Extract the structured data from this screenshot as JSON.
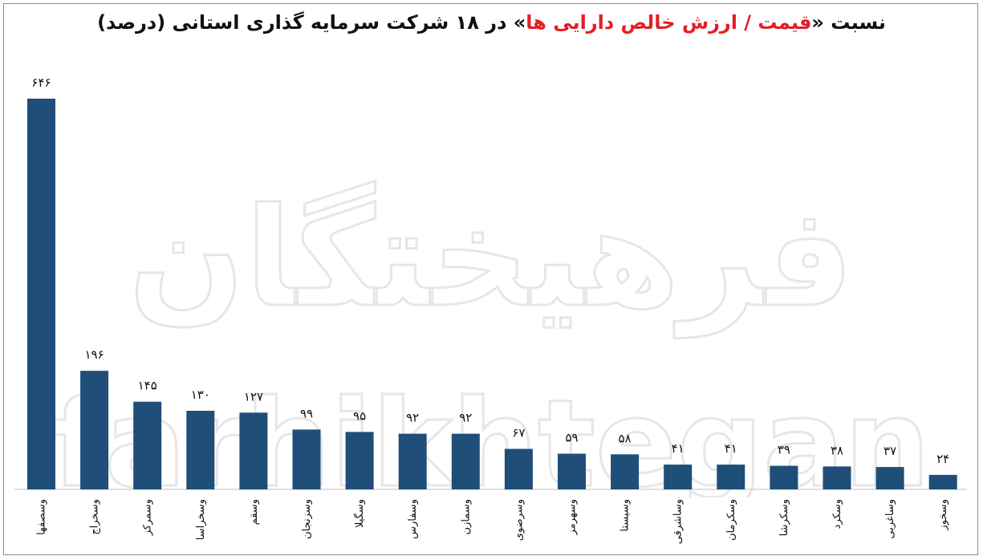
{
  "title": {
    "prefix": "نسبت «",
    "highlight": "قیمت / ارزش خالص دارایی ها",
    "suffix": "» در ۱۸ شرکت سرمایه گذاری استانی (درصد)"
  },
  "watermark": {
    "fa": "فرهیختگان",
    "en": "farhikhtegan"
  },
  "colors": {
    "bar": "#1f4e79",
    "highlight": "#e41e26"
  },
  "chart_data": {
    "type": "bar",
    "title": "نسبت «قیمت / ارزش خالص دارایی ها» در ۱۸ شرکت سرمایه گذاری استانی (درصد)",
    "categories": [
      "وسصفها",
      "وسخراج",
      "وسمرکز",
      "وسخراسا",
      "وسقم",
      "وسزنجان",
      "وسگیلا",
      "وسفارس",
      "وسمازن",
      "وسرضوی",
      "وسهرمز",
      "وسیستا",
      "وساشرقی",
      "وسکرمان",
      "وسکرشا",
      "وسکرد",
      "وساغربی",
      "وسخوز"
    ],
    "values": [
      646,
      196,
      145,
      130,
      127,
      99,
      95,
      92,
      92,
      67,
      59,
      58,
      41,
      41,
      39,
      38,
      37,
      24
    ],
    "value_labels": [
      "۶۴۶",
      "۱۹۶",
      "۱۴۵",
      "۱۳۰",
      "۱۲۷",
      "۹۹",
      "۹۵",
      "۹۲",
      "۹۲",
      "۶۷",
      "۵۹",
      "۵۸",
      "۴۱",
      "۴۱",
      "۳۹",
      "۳۸",
      "۳۷",
      "۲۴"
    ],
    "ylim": [
      0,
      646
    ],
    "xlabel": "",
    "ylabel": "",
    "grid": false,
    "legend": "none"
  }
}
